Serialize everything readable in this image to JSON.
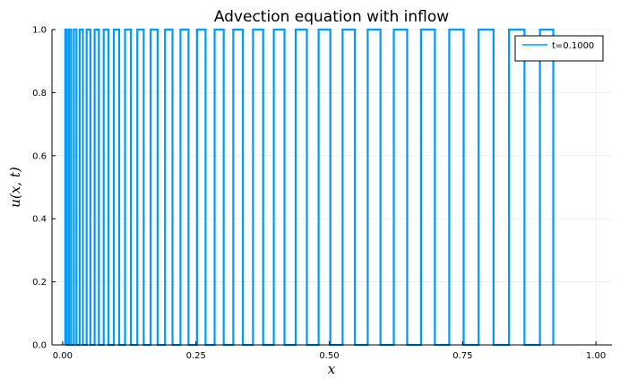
{
  "chart_data": {
    "type": "line",
    "title": "Advection equation with inflow",
    "xlabel": "x",
    "ylabel": "u(x, t)",
    "xlim": [
      -0.02,
      1.03
    ],
    "ylim": [
      0,
      1
    ],
    "xticks": [
      0.0,
      0.25,
      0.5,
      0.75,
      1.0
    ],
    "xtick_labels": [
      "0.00",
      "0.25",
      "0.50",
      "0.75",
      "1.00"
    ],
    "yticks": [
      0.0,
      0.2,
      0.4,
      0.6,
      0.8,
      1.0
    ],
    "ytick_labels": [
      "0.0",
      "0.2",
      "0.4",
      "0.6",
      "0.8",
      "1.0"
    ],
    "grid": true,
    "legend_position": "top-right",
    "series": [
      {
        "name": "t=0.1000",
        "color": "#009af9",
        "description_shape": "square-wave oscillation between 0 and 1, dense near x=0, ending near x=0.92",
        "transition_x": [
          0.005,
          0.008,
          0.012,
          0.016,
          0.021,
          0.026,
          0.032,
          0.038,
          0.045,
          0.052,
          0.06,
          0.068,
          0.077,
          0.086,
          0.096,
          0.106,
          0.117,
          0.128,
          0.14,
          0.152,
          0.165,
          0.178,
          0.192,
          0.206,
          0.221,
          0.236,
          0.252,
          0.268,
          0.285,
          0.302,
          0.32,
          0.338,
          0.357,
          0.376,
          0.396,
          0.416,
          0.437,
          0.458,
          0.48,
          0.502,
          0.525,
          0.548,
          0.572,
          0.596,
          0.621,
          0.646,
          0.672,
          0.698,
          0.725,
          0.752,
          0.78,
          0.808,
          0.837,
          0.866,
          0.895,
          0.92
        ]
      }
    ]
  }
}
